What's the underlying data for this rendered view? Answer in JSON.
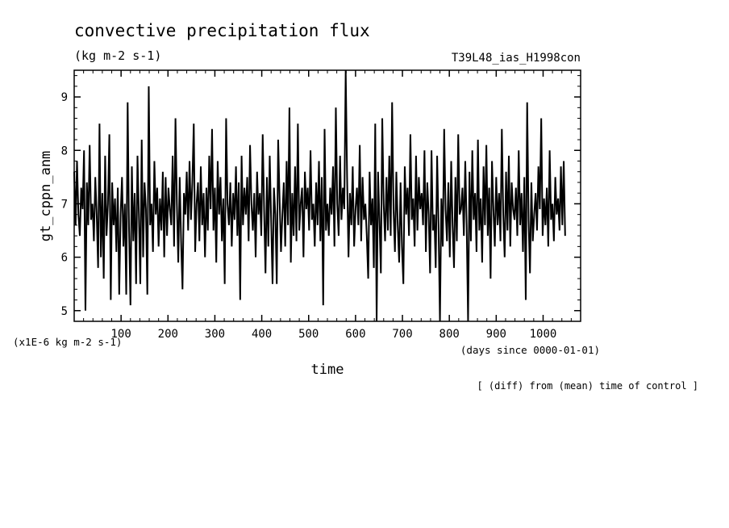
{
  "chart_data": {
    "type": "line",
    "title": "convective precipitation flux",
    "units": "(kg m-2 s-1)",
    "run_label": "T39L48_ias_H1998con",
    "ylabel": "gt_cppn_anm",
    "xlabel": "time",
    "x_units": "(days since 0000-01-01)",
    "y_scale_note": "(x1E-6 kg m-2 s-1)",
    "footnote": "[ (diff) from (mean) time of control ]",
    "xlim": [
      0,
      1080
    ],
    "ylim": [
      4.8,
      9.5
    ],
    "x_ticks": [
      100,
      200,
      300,
      400,
      500,
      600,
      700,
      800,
      900,
      1000
    ],
    "x_tick_labels": [
      "100",
      "200",
      "300",
      "400",
      "500",
      "600",
      "700",
      "800",
      "900",
      "1000"
    ],
    "y_ticks": [
      5,
      6,
      7,
      8,
      9
    ],
    "y_tick_labels": [
      "5",
      "6",
      "7",
      "8",
      "9"
    ],
    "series": [
      {
        "x_start": 0,
        "x_step": 3,
        "values": [
          7.6,
          6.6,
          7.8,
          6.8,
          6.4,
          7.3,
          6.9,
          8.0,
          5.0,
          7.4,
          6.6,
          8.1,
          6.7,
          7.0,
          6.3,
          7.5,
          6.8,
          5.8,
          8.5,
          6.0,
          7.2,
          5.6,
          7.9,
          6.4,
          7.0,
          8.3,
          5.2,
          7.4,
          6.6,
          7.1,
          6.1,
          7.3,
          5.3,
          6.8,
          7.5,
          6.2,
          7.0,
          5.3,
          8.9,
          6.5,
          5.1,
          7.7,
          6.3,
          7.2,
          5.5,
          7.9,
          6.8,
          5.5,
          8.2,
          6.0,
          7.4,
          6.9,
          5.3,
          9.2,
          6.6,
          7.0,
          6.1,
          7.8,
          6.8,
          7.3,
          6.2,
          7.1,
          6.5,
          7.6,
          6.0,
          7.5,
          6.4,
          7.3,
          6.9,
          6.6,
          7.9,
          6.2,
          8.6,
          7.0,
          5.9,
          7.5,
          6.3,
          5.4,
          7.2,
          6.8,
          7.6,
          6.5,
          7.8,
          6.7,
          7.4,
          8.5,
          6.1,
          7.0,
          7.4,
          6.3,
          7.7,
          6.6,
          7.2,
          6.0,
          7.3,
          6.5,
          7.9,
          6.9,
          8.4,
          6.5,
          7.3,
          5.9,
          7.8,
          6.8,
          7.5,
          6.3,
          7.1,
          5.5,
          8.6,
          7.0,
          6.6,
          7.4,
          6.2,
          7.2,
          6.7,
          7.7,
          6.4,
          7.4,
          5.2,
          7.9,
          6.6,
          7.3,
          6.8,
          7.5,
          6.3,
          8.1,
          7.0,
          6.5,
          7.2,
          6.0,
          7.6,
          6.8,
          7.2,
          6.4,
          8.3,
          6.9,
          5.7,
          7.5,
          6.2,
          7.9,
          6.7,
          5.5,
          7.3,
          6.8,
          5.5,
          8.2,
          7.1,
          6.1,
          6.8,
          7.4,
          6.2,
          7.8,
          6.6,
          8.8,
          5.9,
          7.2,
          6.4,
          7.7,
          6.3,
          8.5,
          6.5,
          7.0,
          7.3,
          6.0,
          7.6,
          6.9,
          7.3,
          6.5,
          8.0,
          6.7,
          7.0,
          6.2,
          7.4,
          6.6,
          7.8,
          6.3,
          7.5,
          5.1,
          8.4,
          6.5,
          7.0,
          6.4,
          7.3,
          6.8,
          7.7,
          6.2,
          8.8,
          7.0,
          6.4,
          7.9,
          6.7,
          7.3,
          6.9,
          9.5,
          7.5,
          6.0,
          7.2,
          6.6,
          7.7,
          6.2,
          6.9,
          7.3,
          6.6,
          8.1,
          6.3,
          7.5,
          6.7,
          7.0,
          6.4,
          5.6,
          7.6,
          6.6,
          7.1,
          5.8,
          8.5,
          4.8,
          7.6,
          6.7,
          5.7,
          8.6,
          7.0,
          6.3,
          7.5,
          6.5,
          7.9,
          6.4,
          8.9,
          6.9,
          6.1,
          7.6,
          6.6,
          5.9,
          7.4,
          6.2,
          5.5,
          7.7,
          6.8,
          7.3,
          6.4,
          8.3,
          6.7,
          7.1,
          6.2,
          7.9,
          6.5,
          7.5,
          6.9,
          7.2,
          6.6,
          8.0,
          6.1,
          7.4,
          6.8,
          5.7,
          8.0,
          6.5,
          6.8,
          5.8,
          7.9,
          6.6,
          4.8,
          7.1,
          6.2,
          8.4,
          6.9,
          6.3,
          7.4,
          6.0,
          7.8,
          6.6,
          5.8,
          7.5,
          6.3,
          8.3,
          6.8,
          6.9,
          7.3,
          6.4,
          7.8,
          6.6,
          4.8,
          7.6,
          6.3,
          8.0,
          6.7,
          7.2,
          6.1,
          8.2,
          6.5,
          7.1,
          5.9,
          7.7,
          6.6,
          8.1,
          6.4,
          7.3,
          5.6,
          7.8,
          6.9,
          6.2,
          7.5,
          6.6,
          7.2,
          6.3,
          8.4,
          6.8,
          6.0,
          7.6,
          6.5,
          7.9,
          6.2,
          7.4,
          6.9,
          6.7,
          7.3,
          6.4,
          8.0,
          6.6,
          7.2,
          6.1,
          7.5,
          5.2,
          8.9,
          6.7,
          5.7,
          7.4,
          6.3,
          6.8,
          7.2,
          6.5,
          7.7,
          6.9,
          8.6,
          6.4,
          7.1,
          6.6,
          7.3,
          6.2,
          8.0,
          6.7,
          7.0,
          6.3,
          7.5,
          6.8,
          7.1,
          6.5,
          7.7,
          6.6,
          7.8,
          6.4
        ]
      }
    ],
    "grid": false,
    "legend": "none"
  }
}
